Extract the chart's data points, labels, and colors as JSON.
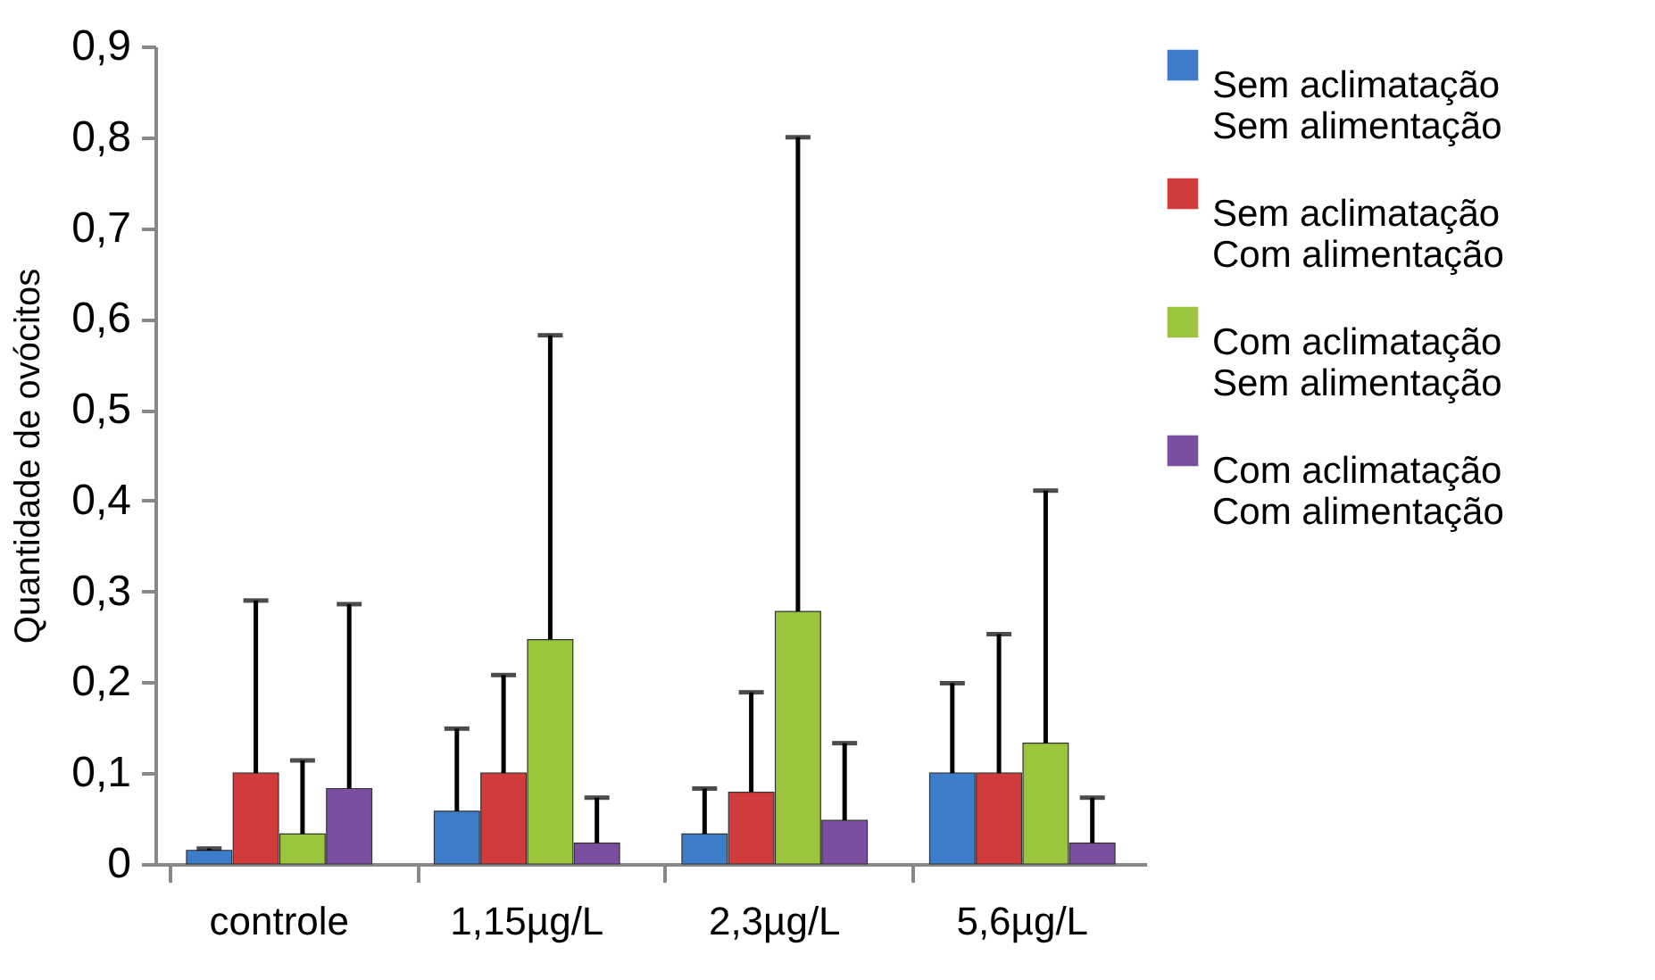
{
  "chart_data": {
    "type": "bar",
    "ylabel": "Quantidade de ovócitos",
    "categories": [
      "controle",
      "1,15µg/L",
      "2,3µg/L",
      "5,6µg/L"
    ],
    "series": [
      {
        "name": "Sem aclimatação Sem alimentação",
        "color": "#3d7cc9",
        "values": [
          0.015,
          0.058,
          0.033,
          0.1
        ],
        "errors": [
          [
            0.015,
            0.017
          ],
          [
            0.058,
            0.149
          ],
          [
            0.033,
            0.083
          ],
          [
            0.1,
            0.199
          ]
        ]
      },
      {
        "name": "Sem aclimatação Com alimentação",
        "color": "#d23b3b",
        "values": [
          0.1,
          0.1,
          0.079,
          0.1
        ],
        "errors": [
          [
            0.1,
            0.29
          ],
          [
            0.1,
            0.208
          ],
          [
            0.079,
            0.189
          ],
          [
            0.1,
            0.253
          ]
        ]
      },
      {
        "name": "Com aclimatação Sem alimentação",
        "color": "#9bc53d",
        "values": [
          0.033,
          0.247,
          0.278,
          0.133
        ],
        "errors": [
          [
            0.033,
            0.114
          ],
          [
            0.247,
            0.582
          ],
          [
            0.278,
            0.8
          ],
          [
            0.133,
            0.411
          ]
        ]
      },
      {
        "name": "Com aclimatação Com alimentação",
        "color": "#7a4fa0",
        "values": [
          0.083,
          0.023,
          0.048,
          0.023
        ],
        "errors": [
          [
            0.083,
            0.286
          ],
          [
            0.023,
            0.073
          ],
          [
            0.048,
            0.133
          ],
          [
            0.023,
            0.073
          ]
        ]
      }
    ],
    "ylim": [
      0,
      0.9
    ],
    "yticks": [
      {
        "value": 0,
        "label": "0"
      },
      {
        "value": 0.1,
        "label": "0,1"
      },
      {
        "value": 0.2,
        "label": "0,2"
      },
      {
        "value": 0.3,
        "label": "0,3"
      },
      {
        "value": 0.4,
        "label": "0,4"
      },
      {
        "value": 0.5,
        "label": "0,5"
      },
      {
        "value": 0.6,
        "label": "0,6"
      },
      {
        "value": 0.7,
        "label": "0,7"
      },
      {
        "value": 0.8,
        "label": "0,8"
      },
      {
        "value": 0.9,
        "label": "0,9"
      }
    ],
    "grid": false,
    "legend": "right"
  }
}
